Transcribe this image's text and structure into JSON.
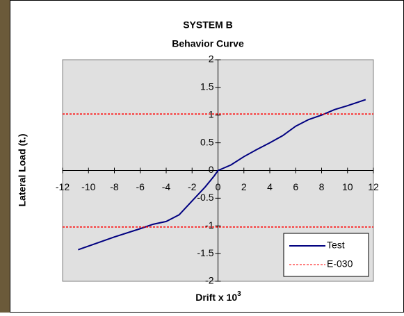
{
  "chart_data": {
    "type": "line",
    "title": "SYSTEM B",
    "subtitle": "Behavior Curve",
    "x_label": "Drift x 10",
    "x_label_superscript": "3",
    "y_label": "Lateral Load (t.)",
    "xlim": [
      -12,
      12
    ],
    "xticks": [
      -12,
      -10,
      -8,
      -6,
      -4,
      -2,
      0,
      2,
      4,
      6,
      8,
      10,
      12
    ],
    "ylim": [
      -2,
      2
    ],
    "yticks": [
      -2,
      -1.5,
      -1,
      -0.5,
      0,
      0.5,
      1,
      1.5,
      2
    ],
    "grid": false,
    "legend": "bottom-right",
    "series": [
      {
        "name": "Test",
        "color": "#000080",
        "dash": false,
        "x": [
          -10.8,
          -8,
          -6,
          -5,
          -4,
          -3,
          -2,
          -1,
          -0.3,
          0,
          1,
          2,
          3,
          4,
          5,
          6,
          7,
          8,
          9,
          10,
          11.4
        ],
        "values": [
          -1.43,
          -1.2,
          -1.05,
          -0.97,
          -0.92,
          -0.8,
          -0.55,
          -0.3,
          -0.1,
          0,
          0.1,
          0.25,
          0.38,
          0.5,
          0.63,
          0.8,
          0.92,
          1.0,
          1.1,
          1.17,
          1.28
        ]
      },
      {
        "name": "E-030",
        "color": "#ff0000",
        "dash": true,
        "x": [
          -12,
          12,
          null,
          -12,
          12
        ],
        "values": [
          1.02,
          1.02,
          null,
          -1.02,
          -1.02
        ]
      }
    ]
  }
}
